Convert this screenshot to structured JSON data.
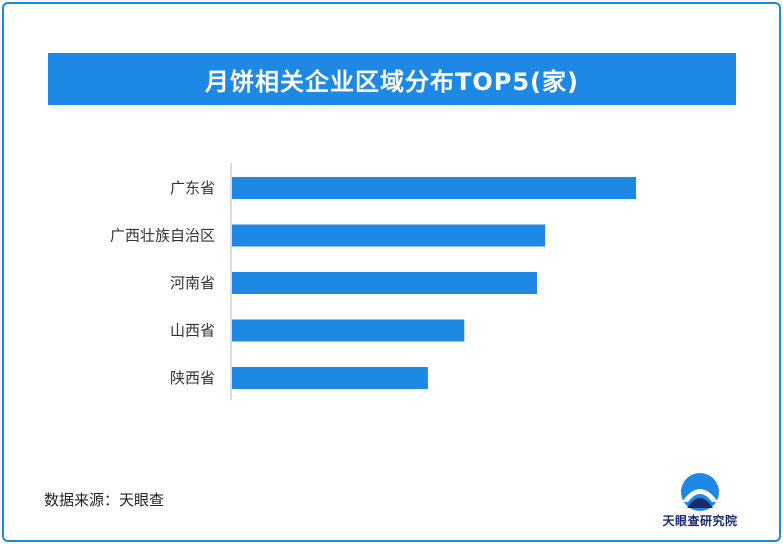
{
  "chart_data": {
    "type": "bar",
    "orientation": "horizontal",
    "title": "月饼相关企业区域分布TOP5(家)",
    "categories": [
      "广东省",
      "广西壮族自治区",
      "河南省",
      "山西省",
      "陕西省"
    ],
    "values": [
      100,
      77.5,
      75.5,
      57.5,
      48.5
    ],
    "xlim": [
      0,
      100
    ],
    "grid": false,
    "value_labels_shown": false,
    "bar_color": "#1e88e5"
  },
  "source": "数据来源：天眼查",
  "logo": {
    "name": "天眼查研究院",
    "icon": "eye-arc-logo-icon"
  },
  "colors": {
    "accent": "#1e88e5",
    "logo_dark": "#1a2a6c"
  }
}
